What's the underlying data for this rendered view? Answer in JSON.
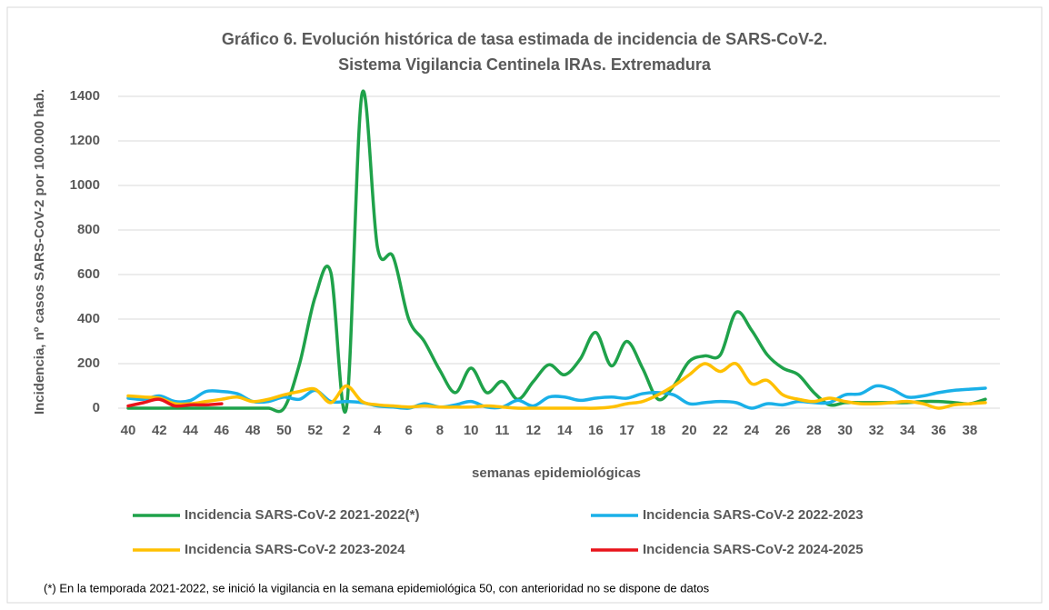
{
  "chart_data": {
    "type": "line",
    "title": [
      "Gráfico 6. Evolución histórica de tasa estimada de  incidencia de SARS-CoV-2.",
      "Sistema Vigilancia Centinela IRAs. Extremadura"
    ],
    "y_label": "Incidencia, nº casos SARS-CoV-2 por 100.000 hab.",
    "x_label": "semanas epidemiológicas",
    "footnote": "(*) En la temporada 2021-2022, se inició la vigilancia en la semana epidemiológica 50, con anterioridad no se dispone de datos",
    "categories": [
      40,
      null,
      42,
      null,
      44,
      null,
      46,
      null,
      48,
      null,
      50,
      null,
      52,
      null,
      2,
      null,
      4,
      null,
      6,
      null,
      8,
      null,
      10,
      null,
      11,
      null,
      12,
      null,
      14,
      null,
      16,
      null,
      17,
      null,
      18,
      null,
      20,
      null,
      22,
      null,
      24,
      null,
      26,
      null,
      28,
      null,
      30,
      null,
      32,
      null,
      34,
      null,
      36,
      null,
      38,
      null
    ],
    "ylim": [
      0,
      1400
    ],
    "yticks": [
      0,
      200,
      400,
      600,
      800,
      1000,
      1200,
      1400
    ],
    "grid": true,
    "legend": "bottom",
    "series": [
      {
        "name": "Incidencia SARS-CoV-2 2021-2022(*)",
        "color": "#1fa24a",
        "values": [
          0,
          0,
          0,
          0,
          0,
          0,
          0,
          0,
          0,
          0,
          0,
          200,
          500,
          610,
          0,
          1410,
          720,
          680,
          400,
          300,
          170,
          70,
          180,
          70,
          120,
          40,
          120,
          195,
          150,
          220,
          340,
          190,
          300,
          180,
          40,
          100,
          210,
          235,
          240,
          430,
          350,
          240,
          180,
          150,
          70,
          15,
          25,
          25,
          25,
          25,
          25,
          30,
          30,
          25,
          20,
          40
        ]
      },
      {
        "name": "Incidencia SARS-CoV-2 2022-2023",
        "color": "#1ab0e8",
        "values": [
          45,
          40,
          55,
          30,
          35,
          75,
          75,
          65,
          30,
          30,
          50,
          40,
          80,
          30,
          30,
          25,
          10,
          5,
          0,
          20,
          5,
          15,
          30,
          5,
          5,
          35,
          10,
          50,
          50,
          35,
          45,
          50,
          45,
          65,
          70,
          60,
          20,
          25,
          30,
          25,
          0,
          20,
          15,
          30,
          25,
          25,
          60,
          65,
          100,
          85,
          50,
          55,
          70,
          80,
          85,
          90
        ]
      },
      {
        "name": "Incidencia SARS-CoV-2 2023-2024",
        "color": "#ffc000",
        "values": [
          55,
          50,
          45,
          20,
          20,
          30,
          40,
          50,
          30,
          40,
          60,
          75,
          85,
          25,
          100,
          30,
          15,
          10,
          5,
          10,
          5,
          5,
          5,
          10,
          5,
          0,
          0,
          0,
          0,
          0,
          0,
          5,
          20,
          30,
          60,
          100,
          150,
          200,
          165,
          200,
          110,
          125,
          60,
          40,
          30,
          45,
          30,
          20,
          20,
          25,
          30,
          20,
          0,
          15,
          20,
          25
        ]
      },
      {
        "name": "Incidencia SARS-CoV-2 2024-2025",
        "color": "#e8141b",
        "values": [
          10,
          25,
          40,
          10,
          15,
          15,
          20,
          null,
          null,
          null,
          null,
          null,
          null,
          null,
          null,
          null,
          null,
          null,
          null,
          null,
          null,
          null,
          null,
          null,
          null,
          null,
          null,
          null,
          null,
          null,
          null,
          null,
          null,
          null,
          null,
          null,
          null,
          null,
          null,
          null,
          null,
          null,
          null,
          null,
          null,
          null,
          null,
          null,
          null,
          null,
          null,
          null,
          null,
          null,
          null,
          null
        ]
      }
    ]
  }
}
